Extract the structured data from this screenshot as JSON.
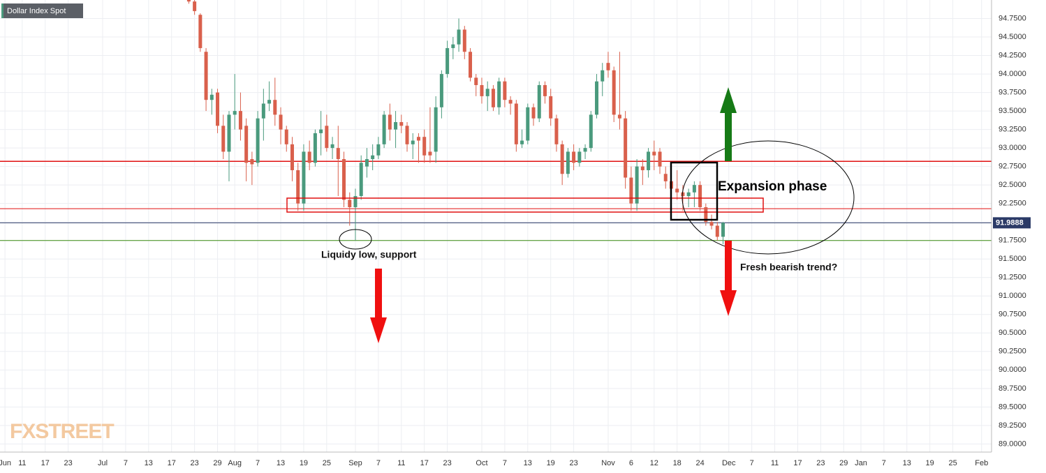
{
  "chart_data": {
    "type": "candlestick",
    "title": "Dollar Index Spot",
    "x": [
      "07-22",
      "07-23",
      "07-24",
      "07-27",
      "07-28",
      "07-29",
      "07-30",
      "07-31",
      "08-03",
      "08-04",
      "08-05",
      "08-06",
      "08-07",
      "08-10",
      "08-11",
      "08-12",
      "08-13",
      "08-14",
      "08-17",
      "08-18",
      "08-19",
      "08-20",
      "08-21",
      "08-24",
      "08-25",
      "08-26",
      "08-27",
      "08-28",
      "08-31",
      "09-01",
      "09-02",
      "09-03",
      "09-04",
      "09-07",
      "09-08",
      "09-09",
      "09-10",
      "09-11",
      "09-14",
      "09-15",
      "09-16",
      "09-17",
      "09-18",
      "09-21",
      "09-22",
      "09-23",
      "09-24",
      "09-25",
      "09-28",
      "09-29",
      "09-30",
      "10-01",
      "10-02",
      "10-05",
      "10-06",
      "10-07",
      "10-08",
      "10-09",
      "10-12",
      "10-13",
      "10-14",
      "10-15",
      "10-16",
      "10-19",
      "10-20",
      "10-21",
      "10-22",
      "10-23",
      "10-26",
      "10-27",
      "10-28",
      "10-29",
      "10-30",
      "11-02",
      "11-03",
      "11-04",
      "11-05",
      "11-06",
      "11-09",
      "11-10",
      "11-11",
      "11-12",
      "11-13",
      "11-16",
      "11-17",
      "11-18",
      "11-19",
      "11-20",
      "11-23",
      "11-24",
      "11-25",
      "11-26",
      "11-27",
      "11-30"
    ],
    "open": [
      95.05,
      94.98,
      94.8,
      94.3,
      93.65,
      93.75,
      93.3,
      92.95,
      93.45,
      93.5,
      93.3,
      92.85,
      92.8,
      93.4,
      93.6,
      93.65,
      93.45,
      93.25,
      93.05,
      92.7,
      92.25,
      92.95,
      92.8,
      93.2,
      93.3,
      93.0,
      93.0,
      92.85,
      92.3,
      92.2,
      92.35,
      92.75,
      92.85,
      92.9,
      93.05,
      93.45,
      93.25,
      93.35,
      93.3,
      93.05,
      93.15,
      93.15,
      92.95,
      92.95,
      93.55,
      94.0,
      94.35,
      94.4,
      94.6,
      94.3,
      93.95,
      93.85,
      93.7,
      93.8,
      93.55,
      93.9,
      93.65,
      93.6,
      93.05,
      93.1,
      93.55,
      93.4,
      93.85,
      93.7,
      93.4,
      93.05,
      92.65,
      92.95,
      92.8,
      92.95,
      93.0,
      93.45,
      93.9,
      94.15,
      94.05,
      93.45,
      93.4,
      92.6,
      92.25,
      92.75,
      92.7,
      92.95,
      92.95,
      92.65,
      92.55,
      92.45,
      92.4,
      92.35,
      92.4,
      92.5,
      92.2,
      92.0,
      91.95,
      91.8
    ],
    "high": [
      95.3,
      95.1,
      94.82,
      94.35,
      93.8,
      93.8,
      93.45,
      93.5,
      94.0,
      93.75,
      93.4,
      92.95,
      93.5,
      93.8,
      93.9,
      93.95,
      93.55,
      93.3,
      93.15,
      92.8,
      93.05,
      93.1,
      93.25,
      93.5,
      93.45,
      93.15,
      93.3,
      92.95,
      92.4,
      92.45,
      92.9,
      93.0,
      93.05,
      93.15,
      93.5,
      93.6,
      93.5,
      93.45,
      93.35,
      93.2,
      93.2,
      93.25,
      93.55,
      93.7,
      94.05,
      94.45,
      94.5,
      94.75,
      94.65,
      94.35,
      94.0,
      93.95,
      93.9,
      93.85,
      93.95,
      93.95,
      93.7,
      93.65,
      93.25,
      93.6,
      93.6,
      93.9,
      93.9,
      93.8,
      93.45,
      93.1,
      93.0,
      93.05,
      93.0,
      93.05,
      93.5,
      94.0,
      94.15,
      94.3,
      94.1,
      94.3,
      93.5,
      92.75,
      92.85,
      92.85,
      93.0,
      93.1,
      93.0,
      92.75,
      92.6,
      92.7,
      92.5,
      92.45,
      92.55,
      92.55,
      92.25,
      92.1,
      92.0,
      92.0
    ],
    "low": [
      94.95,
      94.8,
      94.3,
      93.5,
      93.45,
      93.2,
      92.85,
      92.55,
      93.25,
      93.1,
      92.55,
      92.5,
      92.75,
      93.1,
      93.5,
      93.3,
      93.05,
      92.95,
      92.55,
      92.15,
      92.15,
      92.7,
      92.75,
      92.9,
      92.95,
      92.85,
      92.35,
      92.2,
      91.95,
      91.75,
      92.3,
      92.6,
      92.7,
      92.85,
      93.0,
      93.1,
      93.0,
      93.2,
      92.95,
      92.85,
      92.8,
      92.8,
      92.8,
      92.8,
      93.4,
      93.95,
      94.2,
      94.3,
      94.2,
      93.9,
      93.7,
      93.6,
      93.5,
      93.5,
      93.45,
      93.55,
      93.45,
      92.95,
      93.0,
      93.05,
      93.3,
      93.35,
      93.6,
      93.3,
      92.95,
      92.5,
      92.6,
      92.7,
      92.75,
      92.85,
      92.95,
      93.4,
      93.7,
      93.95,
      93.35,
      93.25,
      92.45,
      92.15,
      92.15,
      92.5,
      92.6,
      92.7,
      92.65,
      92.45,
      92.35,
      92.3,
      92.15,
      92.2,
      92.2,
      92.15,
      91.95,
      91.9,
      91.75,
      91.7
    ],
    "close": [
      94.98,
      94.85,
      94.35,
      93.65,
      93.72,
      93.3,
      92.95,
      93.45,
      93.5,
      93.25,
      92.8,
      92.78,
      93.4,
      93.6,
      93.65,
      93.45,
      93.25,
      93.05,
      92.7,
      92.25,
      92.95,
      92.8,
      93.2,
      93.25,
      93.0,
      93.05,
      92.85,
      92.3,
      92.2,
      92.35,
      92.8,
      92.85,
      92.9,
      93.05,
      93.45,
      93.25,
      93.35,
      93.3,
      93.05,
      93.1,
      93.1,
      92.9,
      92.9,
      93.55,
      94.0,
      94.35,
      94.4,
      94.6,
      94.3,
      93.95,
      93.85,
      93.7,
      93.8,
      93.55,
      93.9,
      93.65,
      93.6,
      93.05,
      93.1,
      93.55,
      93.4,
      93.85,
      93.7,
      93.4,
      93.05,
      92.65,
      92.95,
      92.8,
      92.95,
      93.0,
      93.45,
      93.9,
      94.05,
      94.05,
      93.45,
      93.4,
      92.6,
      92.25,
      92.75,
      92.7,
      92.95,
      92.9,
      92.75,
      92.55,
      92.45,
      92.4,
      92.35,
      92.4,
      92.5,
      92.2,
      92.0,
      91.95,
      91.8,
      91.9888
    ],
    "up_color": "#4a9a7d",
    "down_color": "#d9604c",
    "ylim": [
      88.9,
      95.0
    ],
    "yticks": [
      {
        "value": 89.0,
        "label": "89.0000"
      },
      {
        "value": 89.25,
        "label": "89.2500"
      },
      {
        "value": 89.5,
        "label": "89.5000"
      },
      {
        "value": 89.75,
        "label": "89.7500"
      },
      {
        "value": 90.0,
        "label": "90.0000"
      },
      {
        "value": 90.25,
        "label": "90.2500"
      },
      {
        "value": 90.5,
        "label": "90.5000"
      },
      {
        "value": 90.75,
        "label": "90.7500"
      },
      {
        "value": 91.0,
        "label": "91.0000"
      },
      {
        "value": 91.25,
        "label": "91.2500"
      },
      {
        "value": 91.5,
        "label": "91.5000"
      },
      {
        "value": 91.75,
        "label": "91.7500"
      },
      {
        "value": 92.0,
        "label": "92.0000"
      },
      {
        "value": 92.25,
        "label": "92.2500"
      },
      {
        "value": 92.5,
        "label": "92.5000"
      },
      {
        "value": 92.75,
        "label": "92.7500"
      },
      {
        "value": 93.0,
        "label": "93.0000"
      },
      {
        "value": 93.25,
        "label": "93.2500"
      },
      {
        "value": 93.5,
        "label": "93.5000"
      },
      {
        "value": 93.75,
        "label": "93.7500"
      },
      {
        "value": 94.0,
        "label": "94.0000"
      },
      {
        "value": 94.25,
        "label": "94.2500"
      },
      {
        "value": 94.5,
        "label": "94.5000"
      },
      {
        "value": 94.75,
        "label": "94.7500"
      }
    ],
    "xticks": [
      {
        "value": "06-08",
        "label": "Jun"
      },
      {
        "value": "06-11",
        "label": "11"
      },
      {
        "value": "06-17",
        "label": "17"
      },
      {
        "value": "06-23",
        "label": "23"
      },
      {
        "value": "07-01",
        "label": "Jul"
      },
      {
        "value": "07-07",
        "label": "7"
      },
      {
        "value": "07-13",
        "label": "13"
      },
      {
        "value": "07-17",
        "label": "17"
      },
      {
        "value": "07-23",
        "label": "23"
      },
      {
        "value": "07-29",
        "label": "29"
      },
      {
        "value": "08-03",
        "label": "Aug"
      },
      {
        "value": "08-07",
        "label": "7"
      },
      {
        "value": "08-13",
        "label": "13"
      },
      {
        "value": "08-19",
        "label": "19"
      },
      {
        "value": "08-25",
        "label": "25"
      },
      {
        "value": "09-01",
        "label": "Sep"
      },
      {
        "value": "09-07",
        "label": "7"
      },
      {
        "value": "09-11",
        "label": "11"
      },
      {
        "value": "09-17",
        "label": "17"
      },
      {
        "value": "09-23",
        "label": "23"
      },
      {
        "value": "10-01",
        "label": "Oct"
      },
      {
        "value": "10-07",
        "label": "7"
      },
      {
        "value": "10-13",
        "label": "13"
      },
      {
        "value": "10-19",
        "label": "19"
      },
      {
        "value": "10-23",
        "label": "23"
      },
      {
        "value": "11-02",
        "label": "Nov"
      },
      {
        "value": "11-06",
        "label": "6"
      },
      {
        "value": "11-12",
        "label": "12"
      },
      {
        "value": "11-18",
        "label": "18"
      },
      {
        "value": "11-24",
        "label": "24"
      },
      {
        "value": "12-01",
        "label": "Dec"
      },
      {
        "value": "12-07",
        "label": "7"
      },
      {
        "value": "12-11",
        "label": "11"
      },
      {
        "value": "12-17",
        "label": "17"
      },
      {
        "value": "12-23",
        "label": "23"
      },
      {
        "value": "12-29",
        "label": "29"
      },
      {
        "value": "01-01",
        "label": "Jan"
      },
      {
        "value": "01-07",
        "label": "7"
      },
      {
        "value": "01-13",
        "label": "13"
      },
      {
        "value": "01-19",
        "label": "19"
      },
      {
        "value": "01-25",
        "label": "25"
      },
      {
        "value": "02-01",
        "label": "Feb"
      }
    ],
    "grid": true,
    "levels": [
      {
        "value": 92.82,
        "color": "#e01010"
      },
      {
        "value": 92.18,
        "color": "#e01010"
      },
      {
        "value": 91.75,
        "color": "#3a8a10"
      }
    ],
    "last_price": 91.9888,
    "last_price_color": "#2b3a67",
    "annotations": [
      "Expansion phase",
      "Liquidy low, support",
      "Fresh bearish trend?"
    ],
    "watermark": "FXSTREET"
  }
}
